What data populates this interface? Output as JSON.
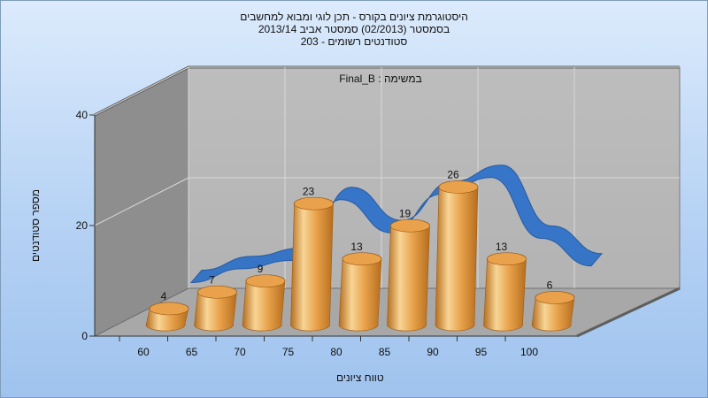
{
  "titles": {
    "line1": "היסטוגרמת ציונים בקורס - תכן לוגי ומבוא למחשבים",
    "line2": "בסמסטר  (02/2013)  סמסטר אביב 2013/14",
    "line3": "סטודנטים רשומים - 203"
  },
  "annotation": "Final_B : במשימה",
  "colors": {
    "bar_light": "#f8d596",
    "bar_mid": "#e9a24b",
    "bar_dark": "#b56d1d",
    "ribbon": "#3072c8",
    "back_wall": "#b3b3b3",
    "side_wall": "#8e8e8e",
    "floor": "#a8a8a8"
  },
  "chart_data": {
    "type": "bar",
    "title": "היסטוגרמת ציונים בקורס - תכן לוגי ומבוא למחשבים",
    "xlabel": "טווח ציונים",
    "ylabel": "מספר סטודנטים",
    "categories": [
      "60",
      "65",
      "70",
      "75",
      "80",
      "85",
      "90",
      "95",
      "100"
    ],
    "values": [
      4,
      7,
      9,
      23,
      13,
      19,
      26,
      13,
      6
    ],
    "ylim": [
      0,
      40
    ],
    "yticks": [
      0,
      20,
      40
    ],
    "grid": true,
    "three_d": true,
    "overlay": {
      "type": "area-ribbon",
      "x": [
        "65",
        "70",
        "75",
        "80",
        "85",
        "90",
        "95",
        "100",
        "105"
      ],
      "values": [
        2,
        4.5,
        6,
        17,
        11,
        18,
        21,
        10,
        5
      ]
    }
  }
}
